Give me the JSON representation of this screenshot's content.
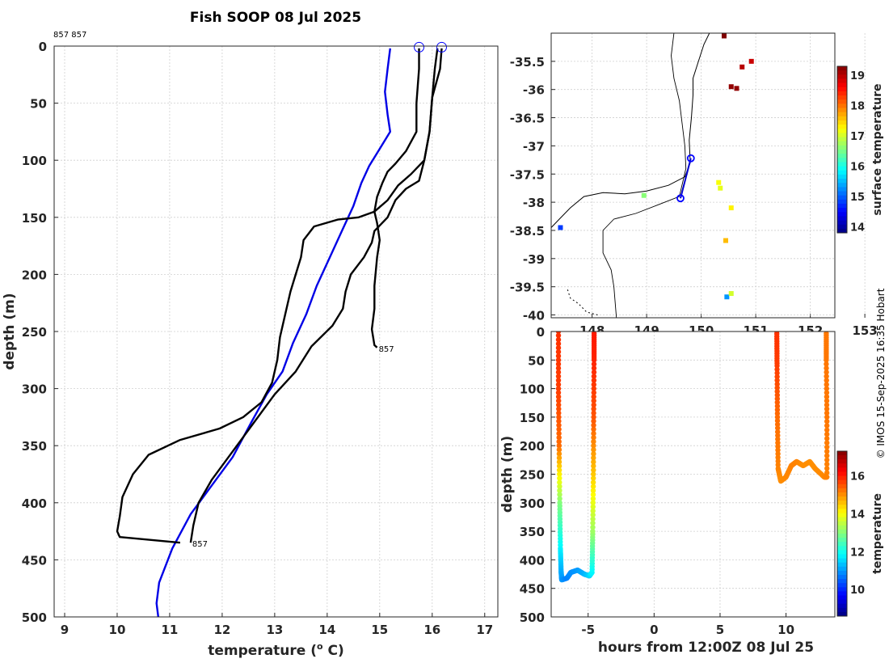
{
  "title": "Fish SOOP 08 Jul 2025",
  "top_id_label": "857 857",
  "credit": "© IMOS 15-Sep-2025 16:35 Hobart",
  "chart_data": [
    {
      "id": "profiles",
      "type": "line",
      "xlabel": "temperature (o C)",
      "xlabel_main": "temperature (",
      "xlabel_sup": "o",
      "xlabel_end": " C)",
      "ylabel": "depth (m)",
      "xlim": [
        8.8,
        17.25
      ],
      "ylim": [
        0,
        500
      ],
      "y_reversed": true,
      "xticks": [
        9,
        10,
        11,
        12,
        13,
        14,
        15,
        16,
        17
      ],
      "yticks": [
        0,
        50,
        100,
        150,
        200,
        250,
        300,
        350,
        400,
        450,
        500
      ],
      "grid": true,
      "markers": [
        {
          "x": 15.75,
          "y": 1,
          "color": "#0000ff"
        },
        {
          "x": 16.18,
          "y": 1,
          "color": "#0000ff"
        }
      ],
      "annotations": [
        {
          "text": "857",
          "x": 14.95,
          "y": 264
        },
        {
          "text": "857",
          "x": 11.4,
          "y": 435
        }
      ],
      "series": [
        {
          "name": "blue profile",
          "color": "#0000e6",
          "points": [
            [
              15.2,
              2
            ],
            [
              15.15,
              20
            ],
            [
              15.1,
              40
            ],
            [
              15.15,
              60
            ],
            [
              15.2,
              75
            ],
            [
              15.0,
              90
            ],
            [
              14.8,
              105
            ],
            [
              14.65,
              120
            ],
            [
              14.5,
              140
            ],
            [
              14.3,
              160
            ],
            [
              14.05,
              185
            ],
            [
              13.8,
              210
            ],
            [
              13.6,
              235
            ],
            [
              13.35,
              260
            ],
            [
              13.15,
              285
            ],
            [
              12.85,
              305
            ],
            [
              12.55,
              330
            ],
            [
              12.2,
              360
            ],
            [
              11.8,
              385
            ],
            [
              11.4,
              410
            ],
            [
              11.05,
              440
            ],
            [
              10.8,
              470
            ],
            [
              10.75,
              488
            ],
            [
              10.8,
              506
            ]
          ]
        },
        {
          "name": "black profile 1",
          "color": "#000000",
          "points": [
            [
              15.75,
              2
            ],
            [
              15.75,
              20
            ],
            [
              15.7,
              50
            ],
            [
              15.7,
              75
            ],
            [
              15.5,
              92
            ],
            [
              15.3,
              103
            ],
            [
              15.15,
              110
            ],
            [
              15.05,
              120
            ],
            [
              14.95,
              132
            ],
            [
              14.9,
              145
            ],
            [
              14.95,
              155
            ],
            [
              15.0,
              170
            ],
            [
              14.95,
              185
            ],
            [
              14.9,
              210
            ],
            [
              14.9,
              230
            ],
            [
              14.85,
              248
            ],
            [
              14.9,
              262
            ],
            [
              14.95,
              264
            ]
          ]
        },
        {
          "name": "black profile 2",
          "color": "#000000",
          "points": [
            [
              16.1,
              2
            ],
            [
              16.05,
              20
            ],
            [
              16.0,
              45
            ],
            [
              15.95,
              75
            ],
            [
              15.85,
              100
            ],
            [
              15.75,
              118
            ],
            [
              15.5,
              125
            ],
            [
              15.3,
              135
            ],
            [
              15.15,
              150
            ],
            [
              14.9,
              162
            ],
            [
              14.85,
              172
            ],
            [
              14.7,
              185
            ],
            [
              14.45,
              200
            ],
            [
              14.35,
              215
            ],
            [
              14.3,
              230
            ],
            [
              14.1,
              245
            ],
            [
              13.7,
              263
            ],
            [
              13.4,
              285
            ],
            [
              13.0,
              305
            ],
            [
              12.6,
              330
            ],
            [
              12.2,
              355
            ],
            [
              11.8,
              380
            ],
            [
              11.55,
              400
            ],
            [
              11.45,
              420
            ],
            [
              11.4,
              435
            ]
          ]
        },
        {
          "name": "black profile 3",
          "color": "#000000",
          "points": [
            [
              16.18,
              2
            ],
            [
              16.15,
              20
            ],
            [
              16.0,
              45
            ],
            [
              15.95,
              75
            ],
            [
              15.85,
              100
            ],
            [
              15.6,
              112
            ],
            [
              15.35,
              122
            ],
            [
              15.15,
              135
            ],
            [
              14.9,
              145
            ],
            [
              14.6,
              150
            ],
            [
              14.2,
              152
            ],
            [
              13.75,
              158
            ],
            [
              13.55,
              170
            ],
            [
              13.5,
              185
            ],
            [
              13.4,
              200
            ],
            [
              13.3,
              215
            ],
            [
              13.2,
              235
            ],
            [
              13.1,
              255
            ],
            [
              13.05,
              275
            ],
            [
              12.95,
              295
            ],
            [
              12.75,
              312
            ],
            [
              12.4,
              325
            ],
            [
              11.95,
              335
            ],
            [
              11.2,
              345
            ],
            [
              10.6,
              358
            ],
            [
              10.3,
              375
            ],
            [
              10.1,
              395
            ],
            [
              10.05,
              412
            ],
            [
              10.0,
              425
            ],
            [
              10.05,
              430
            ],
            [
              10.75,
              433
            ],
            [
              11.2,
              435
            ]
          ]
        }
      ]
    },
    {
      "id": "map",
      "type": "scatter",
      "xlabel": "",
      "ylabel": "",
      "xlim": [
        147.25,
        152.45
      ],
      "ylim": [
        -40.05,
        -35.0
      ],
      "xticks": [
        148,
        149,
        150,
        151,
        152,
        153
      ],
      "xtick_labels": [
        "148",
        "149",
        "150",
        "151",
        "152",
        "153"
      ],
      "yticks": [
        -35.5,
        -36,
        -36.5,
        -37,
        -37.5,
        -38,
        -38.5,
        -39,
        -39.5,
        -40
      ],
      "ytick_labels": [
        "-35.5",
        "-36",
        "-36.5",
        "-37",
        "-37.5",
        "-38",
        "-38.5",
        "-39",
        "-39.5",
        "-40"
      ],
      "grid": true,
      "colorbar": {
        "label": "surface temperature",
        "min": 13.8,
        "max": 19.3,
        "ticks": [
          14,
          15,
          16,
          17,
          18,
          19
        ]
      },
      "points": [
        {
          "lon": 147.42,
          "lat": -38.45,
          "t": 14.8
        },
        {
          "lon": 148.95,
          "lat": -37.88,
          "t": 16.6
        },
        {
          "lon": 150.35,
          "lat": -37.75,
          "t": 17.1
        },
        {
          "lon": 150.32,
          "lat": -37.65,
          "t": 17.2
        },
        {
          "lon": 150.55,
          "lat": -38.1,
          "t": 17.3
        },
        {
          "lon": 150.45,
          "lat": -38.68,
          "t": 17.6
        },
        {
          "lon": 150.55,
          "lat": -35.95,
          "t": 19.2
        },
        {
          "lon": 150.65,
          "lat": -35.98,
          "t": 19.2
        },
        {
          "lon": 150.75,
          "lat": -35.6,
          "t": 19.0
        },
        {
          "lon": 150.42,
          "lat": -35.05,
          "t": 19.3
        },
        {
          "lon": 150.92,
          "lat": -35.5,
          "t": 18.9
        },
        {
          "lon": 150.47,
          "lat": -39.68,
          "t": 15.3
        },
        {
          "lon": 150.55,
          "lat": -39.62,
          "t": 17.0
        }
      ],
      "track": [
        {
          "lon": 149.81,
          "lat": -37.22
        },
        {
          "lon": 149.62,
          "lat": -37.93
        }
      ],
      "track_markers": [
        {
          "lon": 149.81,
          "lat": -37.22
        },
        {
          "lon": 149.62,
          "lat": -37.93
        }
      ]
    },
    {
      "id": "time_depth",
      "type": "scatter",
      "xlabel": "hours from 12:00Z 08 Jul 25",
      "ylabel": "depth (m)",
      "xlim": [
        -7.8,
        13.7
      ],
      "ylim": [
        0,
        500
      ],
      "y_reversed": true,
      "xticks": [
        -5,
        0,
        5,
        10
      ],
      "yticks": [
        0,
        50,
        100,
        150,
        200,
        250,
        300,
        350,
        400,
        450,
        500
      ],
      "grid": true,
      "colorbar": {
        "label": "temperature",
        "min": 8.6,
        "max": 17.3,
        "ticks": [
          10,
          12,
          14,
          16
        ]
      },
      "series": [
        {
          "name": "cast 1",
          "points": [
            [
              -7.25,
              0,
              15.8
            ],
            [
              -7.25,
              100,
              15.7
            ],
            [
              -7.2,
              200,
              15.3
            ],
            [
              -7.15,
              300,
              13.0
            ],
            [
              -7.1,
              380,
              11.8
            ],
            [
              -7.05,
              420,
              11.2
            ],
            [
              -7.0,
              435,
              11.0
            ],
            [
              -6.6,
              432,
              10.8
            ],
            [
              -6.3,
              422,
              10.9
            ],
            [
              -5.8,
              418,
              11.0
            ],
            [
              -5.3,
              425,
              11.2
            ],
            [
              -4.9,
              428,
              11.5
            ],
            [
              -4.7,
              422,
              11.8
            ],
            [
              -4.65,
              350,
              13.2
            ],
            [
              -4.6,
              250,
              14.5
            ],
            [
              -4.58,
              150,
              15.5
            ],
            [
              -4.55,
              50,
              15.9
            ],
            [
              -4.55,
              0,
              16.0
            ]
          ]
        },
        {
          "name": "cast 2",
          "points": [
            [
              9.3,
              0,
              15.8
            ],
            [
              9.32,
              60,
              15.7
            ],
            [
              9.35,
              150,
              15.3
            ],
            [
              9.4,
              240,
              15.1
            ],
            [
              9.6,
              262,
              15.0
            ],
            [
              10.0,
              255,
              15.05
            ],
            [
              10.4,
              235,
              15.1
            ],
            [
              10.8,
              228,
              15.1
            ],
            [
              11.3,
              235,
              15.0
            ],
            [
              11.8,
              228,
              15.0
            ],
            [
              12.2,
              240,
              15.0
            ],
            [
              12.9,
              255,
              15.05
            ],
            [
              13.1,
              255,
              15.1
            ],
            [
              13.1,
              150,
              15.2
            ],
            [
              13.05,
              50,
              15.2
            ],
            [
              13.05,
              0,
              15.2
            ]
          ]
        }
      ]
    }
  ]
}
